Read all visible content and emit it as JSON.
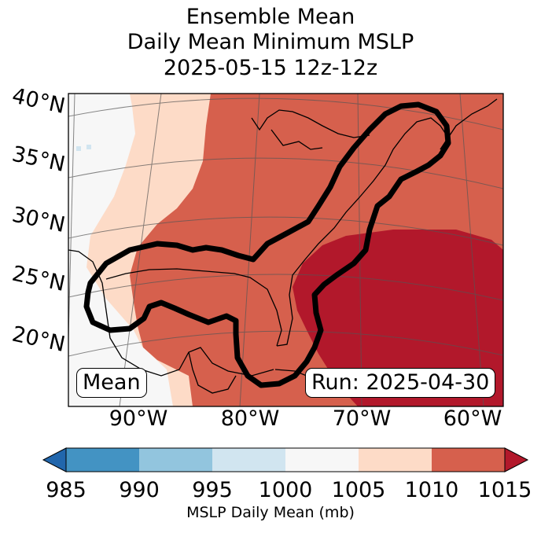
{
  "title": {
    "line1": "Ensemble Mean",
    "line2": "Daily Mean Minimum MSLP",
    "line3": "2025-05-15 12z-12z"
  },
  "map": {
    "lat_labels": [
      "40°N",
      "35°N",
      "30°N",
      "25°N",
      "20°N"
    ],
    "lon_labels": [
      "90°W",
      "80°W",
      "70°W",
      "60°W"
    ],
    "mean_box": "Mean",
    "run_box": "Run: 2025-04-30",
    "colors": {
      "1000_1005": "#f7f7f7",
      "1005_1010": "#fddbc7",
      "1010_1015": "#d6604d",
      "gt_1015": "#b2182b",
      "outline": "#000000"
    }
  },
  "colorbar": {
    "label": "MSLP Daily Mean (mb)",
    "ticks": [
      "985",
      "990",
      "995",
      "1000",
      "1005",
      "1010",
      "1015"
    ],
    "colors": [
      "#4393c3",
      "#92c5de",
      "#d1e5f0",
      "#f7f7f7",
      "#fddbc7",
      "#d6604d"
    ],
    "under_color": "#2166ac",
    "over_color": "#b2182b"
  }
}
